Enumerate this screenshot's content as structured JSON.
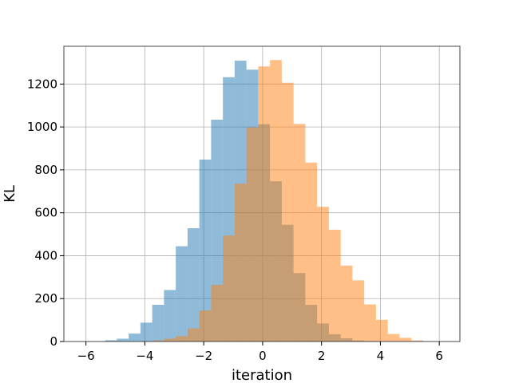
{
  "chart_data": {
    "type": "bar",
    "title": "",
    "xlabel": "iteration",
    "ylabel": "KL",
    "xlim": [
      -6.75,
      6.7
    ],
    "ylim": [
      0,
      1376
    ],
    "grid": true,
    "legend": "none",
    "x_ticks": [
      -6,
      -4,
      -2,
      0,
      2,
      4,
      6
    ],
    "x_tick_labels": [
      "−6",
      "−4",
      "−2",
      "0",
      "2",
      "4",
      "6"
    ],
    "y_ticks": [
      0,
      200,
      400,
      600,
      800,
      1000,
      1200
    ],
    "y_tick_labels": [
      "0",
      "200",
      "400",
      "600",
      "800",
      "1000",
      "1200"
    ],
    "series": [
      {
        "color": "#1f77b4",
        "alpha": 0.5,
        "bin_edges": [
          -5.35,
          -4.95,
          -4.55,
          -4.15,
          -3.75,
          -3.35,
          -2.95,
          -2.55,
          -2.15,
          -1.75,
          -1.35,
          -0.95,
          -0.55,
          -0.15,
          0.25,
          0.65,
          1.05,
          1.45,
          1.85,
          2.25,
          2.65,
          3.05,
          3.45,
          3.85
        ],
        "values": [
          6,
          13,
          37,
          88,
          171,
          240,
          444,
          528,
          848,
          1034,
          1232,
          1309,
          1267,
          1013,
          747,
          544,
          319,
          171,
          84,
          34,
          15,
          5,
          2
        ]
      },
      {
        "color": "#ff7f0e",
        "alpha": 0.5,
        "bin_edges": [
          -4.15,
          -3.75,
          -3.35,
          -2.95,
          -2.55,
          -2.15,
          -1.75,
          -1.35,
          -0.95,
          -0.55,
          -0.15,
          0.25,
          0.65,
          1.05,
          1.45,
          1.85,
          2.25,
          2.65,
          3.05,
          3.45,
          3.85,
          4.25,
          4.65,
          5.05,
          5.45
        ],
        "values": [
          2,
          5,
          13,
          25,
          61,
          145,
          264,
          494,
          736,
          998,
          1282,
          1312,
          1206,
          1014,
          834,
          628,
          521,
          354,
          285,
          173,
          101,
          35,
          17,
          5
        ]
      }
    ]
  }
}
